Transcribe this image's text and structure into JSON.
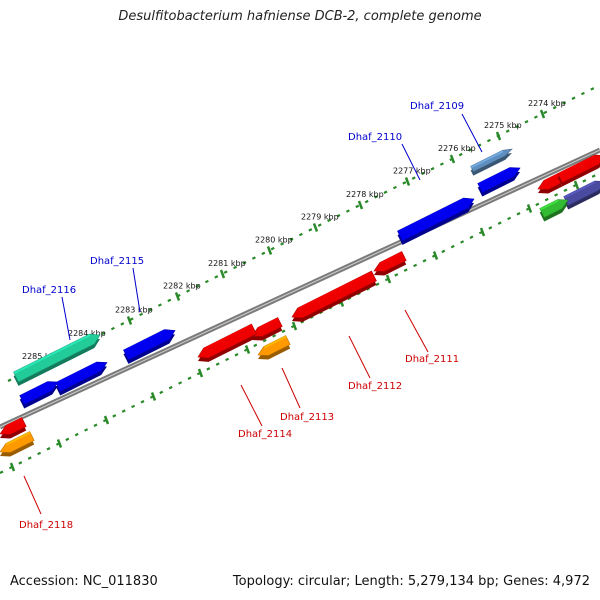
{
  "title": "Desulfitobacterium hafniense DCB-2, complete genome",
  "footer": {
    "accession": "Accession: NC_011830",
    "topology": "Topology: circular; Length: 5,279,134 bp; Genes: 4,972"
  },
  "colors": {
    "backbone": "#7b7b7b",
    "ruler": "#2a8a2a",
    "label_forward": "#0000cc",
    "label_reverse": "#cc0000"
  },
  "ruler_labels": [
    "2274 kbp",
    "2275 kbp",
    "2276 kbp",
    "2277 kbp",
    "2278 kbp",
    "2279 kbp",
    "2280 kbp",
    "2281 kbp",
    "2282 kbp",
    "2283 kbp",
    "2284 kbp",
    "2285 kbp"
  ],
  "genes": [
    {
      "name": "Dhaf_2109",
      "strand": "+",
      "color": "#5f8fbf"
    },
    {
      "name": "Dhaf_2110",
      "strand": "+",
      "color": "#0000ee"
    },
    {
      "name": "Dhaf_2115",
      "strand": "+",
      "color": "#0000ee"
    },
    {
      "name": "Dhaf_2116",
      "strand": "+",
      "color": "#22cc99"
    },
    {
      "name": "Dhaf_2111",
      "strand": "-",
      "color": "#ee0000"
    },
    {
      "name": "Dhaf_2112",
      "strand": "-",
      "color": "#ee0000"
    },
    {
      "name": "Dhaf_2113",
      "strand": "-",
      "color": "#ff9900"
    },
    {
      "name": "Dhaf_2114",
      "strand": "-",
      "color": "#ee0000"
    },
    {
      "name": "Dhaf_2118",
      "strand": "-",
      "color": "#ee0000"
    }
  ],
  "unlabeled_colors": {
    "forward_blue": "#0000ee",
    "navy": "#4a4aa0",
    "green": "#33bb33",
    "red": "#ee0000",
    "orange": "#ff9900"
  }
}
